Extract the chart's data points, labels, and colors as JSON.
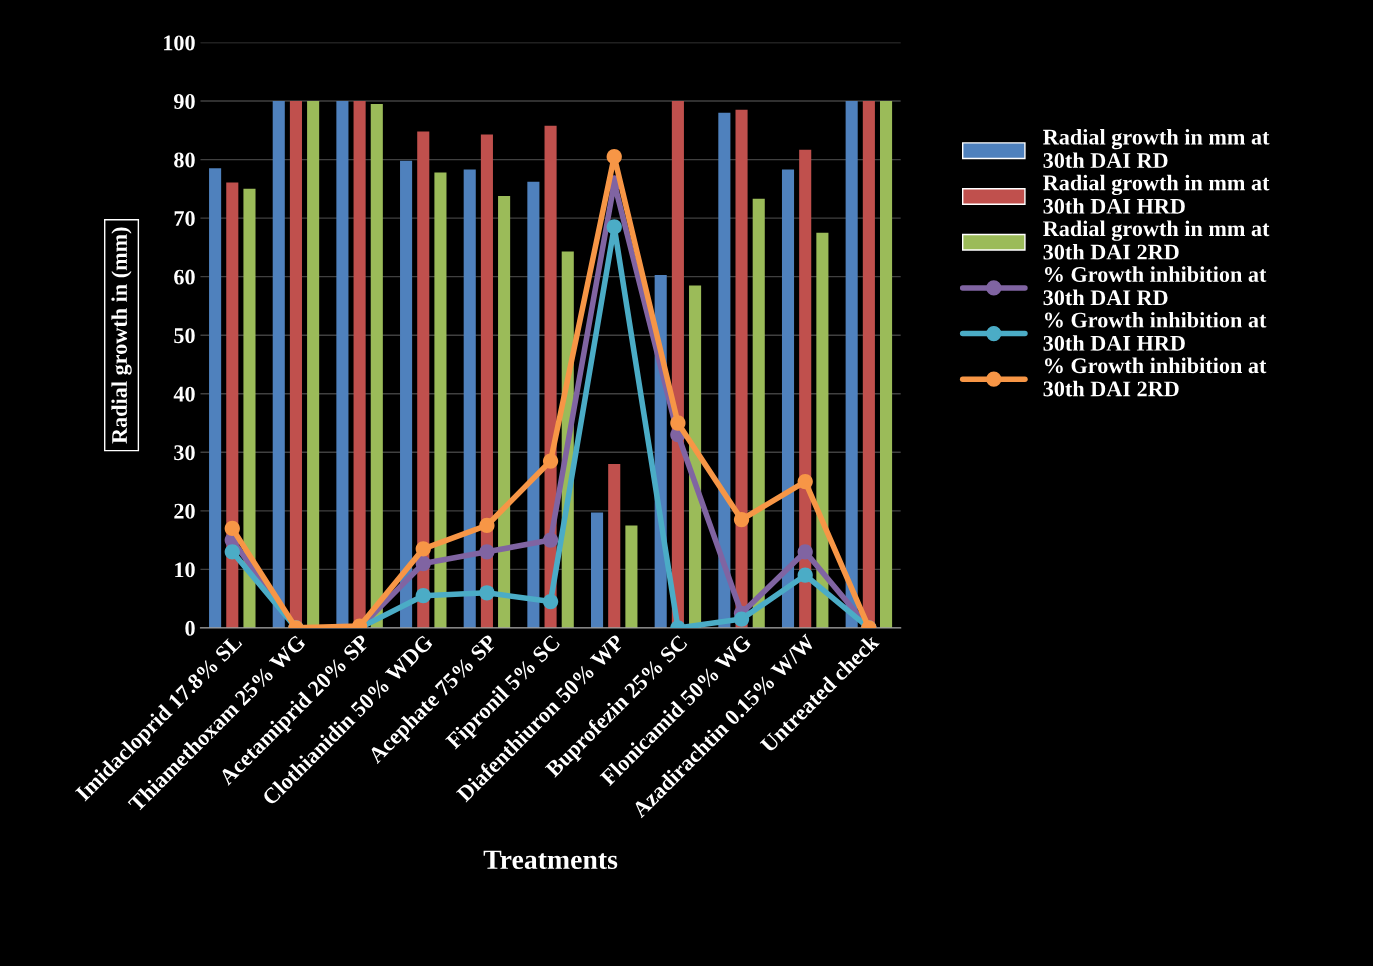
{
  "chart_data": {
    "type": "bar",
    "xlabel": "Treatments",
    "ylabel": "Radial growth in (mm)",
    "categories": [
      "Imidacloprid 17.8% SL",
      "Thiamethoxam 25% WG",
      "Acetamiprid 20% SP",
      "Clothianidin 50% WDG",
      "Acephate 75% SP",
      "Fipronil 5% SC",
      "Diafenthiuron 50% WP",
      "Buprofezin 25% SC",
      "Flonicamid 50% WG",
      "Azadirachtin 0.15% W/W",
      "Untreated check"
    ],
    "series": [
      {
        "name": "Radial growth in mm at\n30th DAI RD",
        "color": "#4f81bd",
        "values": [
          78.5,
          90,
          90,
          79.8,
          78.3,
          76.2,
          19.7,
          60.3,
          88.0,
          78.3,
          90
        ]
      },
      {
        "name": "Radial growth in mm at\n30th DAI HRD",
        "color": "#c0504d",
        "values": [
          76.1,
          90,
          90,
          84.8,
          84.3,
          85.8,
          28.0,
          90,
          88.5,
          81.7,
          90
        ]
      },
      {
        "name": "Radial growth in mm at\n30th DAI 2RD",
        "color": "#9bbb59",
        "values": [
          75.0,
          90,
          89.5,
          77.8,
          73.8,
          64.3,
          17.5,
          58.5,
          73.3,
          67.5,
          90
        ]
      },
      {
        "name": "% Growth inhibition at\n30th DAI RD",
        "type": "line",
        "color": "#8064a2",
        "values": [
          15,
          0,
          0,
          11,
          13,
          15,
          76,
          33,
          2.5,
          13,
          0
        ]
      },
      {
        "name": "% Growth inhibition at\n30th DAI HRD",
        "type": "line",
        "color": "#4bacc6",
        "values": [
          13,
          0,
          0,
          5.5,
          6,
          4.5,
          68.5,
          0,
          1.5,
          9,
          0
        ]
      },
      {
        "name": "% Growth inhibition at\n30th DAI 2RD",
        "type": "line",
        "color": "#f79646",
        "values": [
          17,
          0,
          0.3,
          13.5,
          17.5,
          28.5,
          80.5,
          35,
          18.5,
          25,
          0
        ]
      }
    ],
    "ylim": [
      0,
      100
    ],
    "yticks": [
      0,
      10,
      20,
      30,
      40,
      50,
      60,
      70,
      80,
      90,
      100
    ],
    "grid": "y",
    "legend": "right",
    "marker": "circle",
    "line_style": "solid"
  }
}
